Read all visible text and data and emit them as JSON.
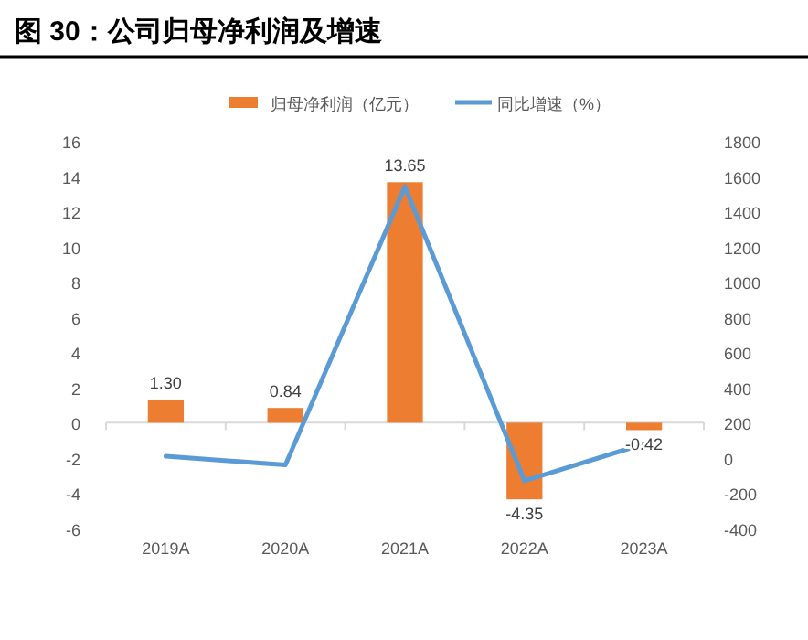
{
  "chart_data": {
    "type": "bar",
    "title": "图 30：公司归母净利润及增速",
    "categories": [
      "2019A",
      "2020A",
      "2021A",
      "2022A",
      "2023A"
    ],
    "series": [
      {
        "name": "归母净利润（亿元）",
        "color": "#ed7d31",
        "values": [
          1.3,
          0.84,
          13.65,
          -4.35,
          -0.42
        ],
        "value_labels": [
          "1.30",
          "0.84",
          "13.65",
          "-4.35",
          "-0.42"
        ]
      },
      {
        "name": "同比增速（%）",
        "type": "line",
        "axis": "y2",
        "color": "#5b9bd5",
        "values": [
          10,
          -40,
          1540,
          -130,
          80
        ]
      }
    ],
    "ylim": [
      -6,
      16
    ],
    "yticks": [
      -6,
      -4,
      -2,
      0,
      2,
      4,
      6,
      8,
      10,
      12,
      14,
      16
    ],
    "y2lim": [
      -400,
      1800
    ],
    "y2ticks": [
      -400,
      -200,
      0,
      200,
      400,
      600,
      800,
      1000,
      1200,
      1400,
      1600,
      1800
    ],
    "legend": "top"
  }
}
